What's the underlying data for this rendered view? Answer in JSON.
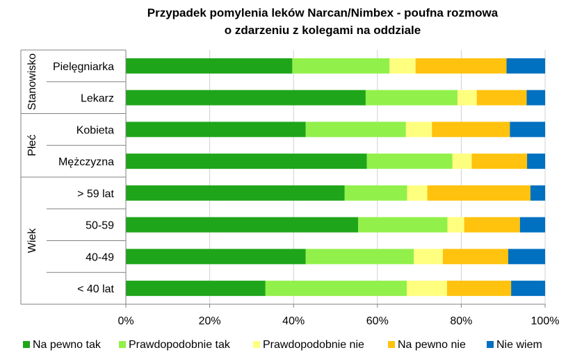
{
  "chart_data": {
    "type": "bar",
    "orientation": "horizontal",
    "stacked": "percent",
    "title": "Przypadek pomylenia leków  Narcan/Nimbex - poufna rozmowa o zdarzeniu z kolegami na oddziale",
    "title_lines": [
      "Przypadek pomylenia leków  Narcan/Nimbex - poufna rozmowa",
      "o zdarzeniu z kolegami na oddziale"
    ],
    "groups": [
      {
        "name": "Stanowisko",
        "categories": [
          "Pielęgniarka",
          "Lekarz"
        ]
      },
      {
        "name": "Płeć",
        "categories": [
          "Kobieta",
          "Mężczyzna"
        ]
      },
      {
        "name": "Wiek",
        "categories": [
          "> 59 lat",
          "50-59",
          "40-49",
          "< 40 lat"
        ]
      }
    ],
    "categories": [
      "Pielęgniarka",
      "Lekarz",
      "Kobieta",
      "Mężczyzna",
      "> 59 lat",
      "50-59",
      "40-49",
      "< 40 lat"
    ],
    "series": [
      {
        "name": "Na pewno tak",
        "color": "#1FA51A",
        "values": [
          39.7,
          57.2,
          42.9,
          57.5,
          52.2,
          55.4,
          42.9,
          33.3
        ]
      },
      {
        "name": "Prawdopodobnie tak",
        "color": "#92F04A",
        "values": [
          23.2,
          21.9,
          23.9,
          20.4,
          14.9,
          21.3,
          25.8,
          33.7
        ]
      },
      {
        "name": "Prawdopodobnie nie",
        "color": "#FFFF7F",
        "values": [
          6.2,
          4.6,
          6.2,
          4.6,
          4.8,
          4.0,
          6.9,
          9.6
        ]
      },
      {
        "name": "Na pewno nie",
        "color": "#FFC20E",
        "values": [
          21.7,
          11.9,
          18.6,
          13.2,
          24.6,
          13.3,
          15.6,
          15.3
        ]
      },
      {
        "name": "Nie wiem",
        "color": "#0070C0",
        "values": [
          9.2,
          4.4,
          8.4,
          4.3,
          3.5,
          6.0,
          8.8,
          8.1
        ]
      }
    ],
    "xlim": [
      0,
      100
    ],
    "x_ticks": [
      "0%",
      "20%",
      "40%",
      "60%",
      "80%",
      "100%"
    ],
    "grid": true,
    "legend_position": "bottom"
  }
}
